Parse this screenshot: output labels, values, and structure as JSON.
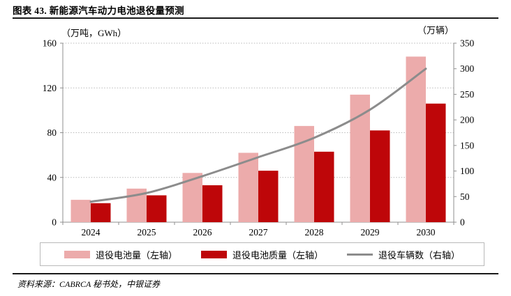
{
  "figure": {
    "title": "图表 43. 新能源汽车动力电池退役量预测",
    "source": "资料来源：CABRCA 秘书处，中银证券"
  },
  "chart_data": {
    "type": "bar",
    "subtype": "grouped-bars-with-line",
    "categories": [
      "2024",
      "2025",
      "2026",
      "2027",
      "2028",
      "2029",
      "2030"
    ],
    "series": [
      {
        "name": "退役电池量（左轴）",
        "type": "bar",
        "axis": "left",
        "color": "#ECABAB",
        "values": [
          20,
          30,
          44,
          62,
          86,
          114,
          148
        ]
      },
      {
        "name": "退役电池质量（左轴）",
        "type": "bar",
        "axis": "left",
        "color": "#BE0609",
        "values": [
          17,
          24,
          33,
          46,
          63,
          82,
          106
        ]
      },
      {
        "name": "退役车辆数（右轴）",
        "type": "line",
        "axis": "right",
        "color": "#8C8C8C",
        "values": [
          40,
          57,
          90,
          127,
          165,
          220,
          300
        ]
      }
    ],
    "left_axis": {
      "label": "（万吨，GWh）",
      "min": 0,
      "max": 160,
      "ticks": [
        0,
        40,
        80,
        120,
        160
      ]
    },
    "right_axis": {
      "label": "（万辆）",
      "min": 0,
      "max": 350,
      "ticks": [
        0,
        50,
        100,
        150,
        200,
        250,
        300,
        350
      ]
    },
    "grid": true,
    "legend_position": "bottom",
    "colors": {
      "grid": "#b8b8b8",
      "axis": "#8f8f8f",
      "rule": "#1a1a1a"
    }
  }
}
